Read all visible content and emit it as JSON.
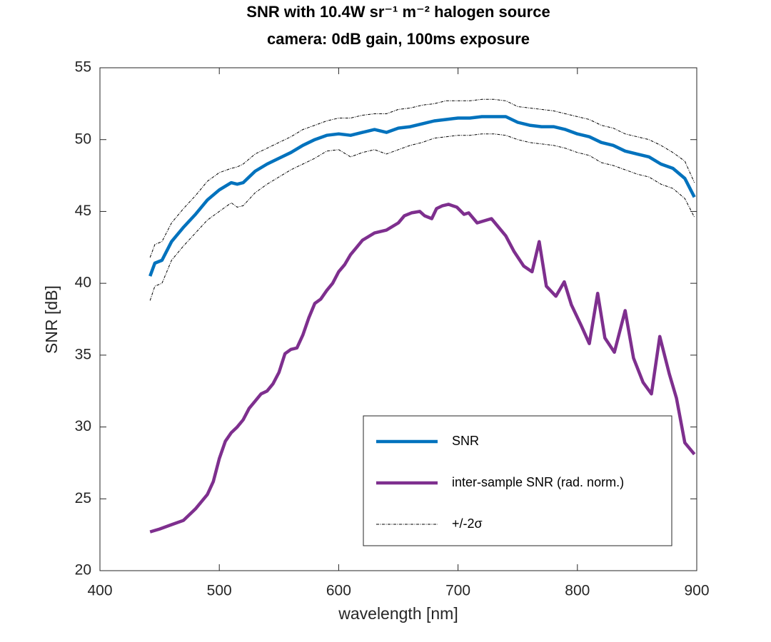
{
  "chart_data": {
    "type": "line",
    "title": "SNR with 10.4W sr⁻¹ m⁻² halogen source",
    "subtitle": "camera: 0dB gain, 100ms exposure",
    "x_label": "wavelength [nm]",
    "y_label": "SNR [dB]",
    "xlim": [
      400,
      900
    ],
    "xticks": [
      400,
      500,
      600,
      700,
      800,
      900
    ],
    "ylim": [
      20,
      55
    ],
    "yticks": [
      20,
      25,
      30,
      35,
      40,
      45,
      50,
      55
    ],
    "grid": false,
    "legend": "lower right",
    "x": [
      442,
      446,
      452,
      460,
      470,
      480,
      490,
      500,
      510,
      515,
      520,
      530,
      540,
      550,
      560,
      570,
      580,
      590,
      600,
      610,
      620,
      630,
      640,
      650,
      660,
      670,
      680,
      690,
      700,
      710,
      720,
      730,
      740,
      750,
      760,
      770,
      780,
      790,
      800,
      810,
      820,
      830,
      840,
      850,
      860,
      870,
      880,
      890,
      898
    ],
    "series": [
      {
        "name": "SNR",
        "color": "#0072bd",
        "values": [
          40.5,
          41.4,
          41.6,
          42.9,
          43.9,
          44.8,
          45.8,
          46.5,
          47.0,
          46.9,
          47.0,
          47.8,
          48.3,
          48.7,
          49.1,
          49.6,
          50.0,
          50.3,
          50.4,
          50.3,
          50.5,
          50.7,
          50.5,
          50.8,
          50.9,
          51.1,
          51.3,
          51.4,
          51.5,
          51.5,
          51.6,
          51.6,
          51.6,
          51.2,
          51.0,
          50.9,
          50.9,
          50.7,
          50.4,
          50.2,
          49.8,
          49.6,
          49.2,
          49.0,
          48.8,
          48.3,
          48.0,
          47.3,
          46.0
        ]
      },
      {
        "name": "inter-sample SNR (rad. norm.)",
        "color": "#7e2f8e",
        "x": [
          442,
          450,
          460,
          470,
          480,
          490,
          495,
          500,
          505,
          510,
          515,
          520,
          525,
          530,
          535,
          540,
          545,
          550,
          555,
          560,
          565,
          570,
          575,
          580,
          585,
          590,
          595,
          600,
          605,
          610,
          615,
          620,
          630,
          640,
          650,
          655,
          661,
          668,
          672,
          678,
          682,
          687,
          692,
          699,
          705,
          709,
          716,
          728,
          740,
          747,
          755,
          762,
          768,
          774,
          782,
          789,
          795,
          803,
          810,
          817,
          823,
          831,
          840,
          847,
          855,
          862,
          869,
          877,
          883,
          890,
          898
        ],
        "values": [
          22.7,
          22.9,
          23.2,
          23.5,
          24.3,
          25.3,
          26.2,
          27.8,
          29.0,
          29.6,
          30.0,
          30.5,
          31.3,
          31.8,
          32.3,
          32.5,
          33.0,
          33.8,
          35.1,
          35.4,
          35.5,
          36.4,
          37.6,
          38.6,
          38.9,
          39.5,
          40.0,
          40.8,
          41.3,
          42.0,
          42.5,
          43.0,
          43.5,
          43.7,
          44.2,
          44.7,
          44.9,
          45.0,
          44.7,
          44.5,
          45.2,
          45.4,
          45.5,
          45.3,
          44.8,
          44.9,
          44.2,
          44.5,
          43.3,
          42.2,
          41.2,
          40.8,
          42.9,
          39.8,
          39.1,
          40.1,
          38.5,
          37.1,
          35.8,
          39.3,
          36.2,
          35.2,
          38.1,
          34.8,
          33.1,
          32.3,
          36.3,
          33.7,
          32.0,
          28.9,
          28.1
        ]
      },
      {
        "name": "+/-2σ",
        "color": "#000000",
        "dashed": true,
        "upper": [
          41.8,
          42.7,
          42.9,
          44.2,
          45.2,
          46.1,
          47.1,
          47.7,
          48.0,
          48.1,
          48.3,
          49.0,
          49.4,
          49.8,
          50.2,
          50.7,
          51.0,
          51.3,
          51.5,
          51.5,
          51.7,
          51.8,
          51.8,
          52.1,
          52.2,
          52.4,
          52.5,
          52.7,
          52.7,
          52.7,
          52.8,
          52.8,
          52.7,
          52.3,
          52.2,
          52.1,
          52.0,
          51.8,
          51.6,
          51.4,
          51.0,
          50.8,
          50.4,
          50.2,
          50.0,
          49.6,
          49.1,
          48.5,
          47.0
        ],
        "lower": [
          38.8,
          39.8,
          40.0,
          41.6,
          42.6,
          43.5,
          44.4,
          45.0,
          45.6,
          45.3,
          45.4,
          46.3,
          46.9,
          47.4,
          47.9,
          48.3,
          48.7,
          49.2,
          49.3,
          48.8,
          49.1,
          49.3,
          49.0,
          49.3,
          49.6,
          49.8,
          50.1,
          50.2,
          50.3,
          50.3,
          50.4,
          50.4,
          50.3,
          50.0,
          49.8,
          49.7,
          49.6,
          49.4,
          49.1,
          48.9,
          48.4,
          48.2,
          47.9,
          47.6,
          47.4,
          46.9,
          46.6,
          45.9,
          44.6
        ]
      }
    ]
  }
}
